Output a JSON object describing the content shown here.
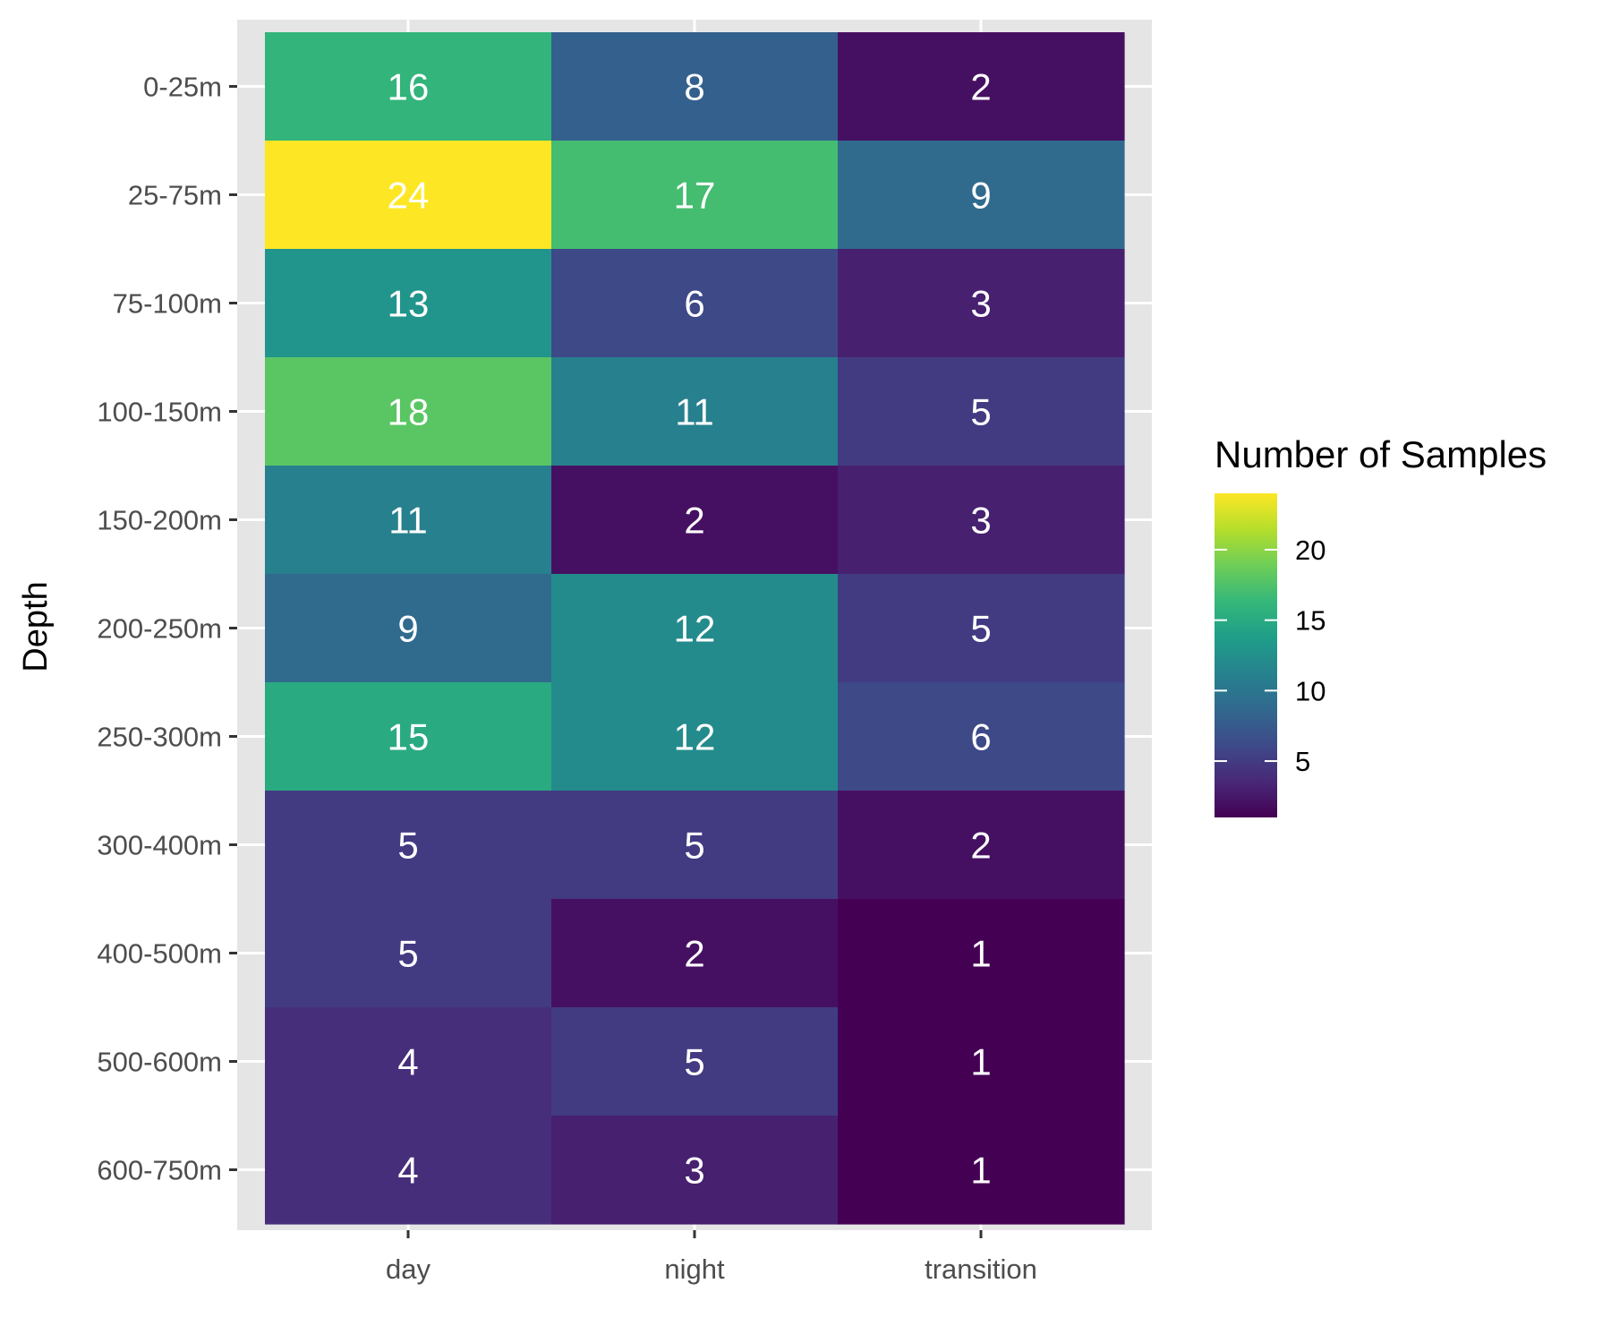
{
  "chart_data": {
    "type": "heatmap",
    "title": "",
    "xlabel": "",
    "ylabel": "Depth",
    "x_categories": [
      "day",
      "night",
      "transition"
    ],
    "y_categories": [
      "0-25m",
      "25-75m",
      "75-100m",
      "100-150m",
      "150-200m",
      "200-250m",
      "250-300m",
      "300-400m",
      "400-500m",
      "500-600m",
      "600-750m"
    ],
    "values": [
      [
        16,
        8,
        2
      ],
      [
        24,
        17,
        9
      ],
      [
        13,
        6,
        3
      ],
      [
        18,
        11,
        5
      ],
      [
        11,
        2,
        3
      ],
      [
        9,
        12,
        5
      ],
      [
        15,
        12,
        6
      ],
      [
        5,
        5,
        2
      ],
      [
        5,
        2,
        1
      ],
      [
        4,
        5,
        1
      ],
      [
        4,
        3,
        1
      ]
    ],
    "legend": {
      "title": "Number of Samples",
      "placement": "right",
      "ticks": [
        5,
        10,
        15,
        20
      ],
      "range": [
        1,
        24
      ]
    },
    "colormap": "viridis",
    "grid": true,
    "panel_background": "#e5e5e5",
    "cell_label_color": "#ffffff"
  }
}
